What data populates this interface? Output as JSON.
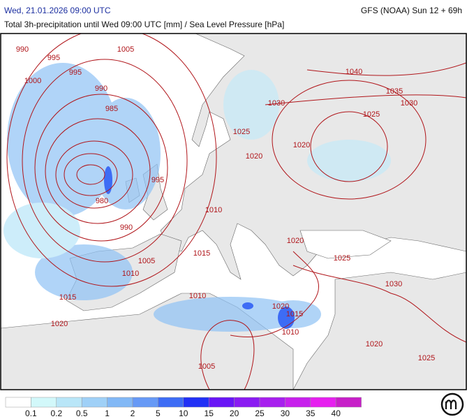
{
  "header": {
    "left": "Wed, 21.01.2026 09:00 UTC",
    "right": "GFS (NOAA) Sun 12 + 69h",
    "subtitle": "Total 3h-precipitation until Wed 09:00 UTC [mm] / Sea Level Pressure [hPa]"
  },
  "isobars": [
    "990",
    "1005",
    "995",
    "995",
    "1000",
    "990",
    "985",
    "980",
    "995",
    "990",
    "1010",
    "1015",
    "1005",
    "1010",
    "1015",
    "1010",
    "1020",
    "1040",
    "1035",
    "1030",
    "1030",
    "1025",
    "1025",
    "1020",
    "1020",
    "1020",
    "1025",
    "1030",
    "1020",
    "1015",
    "1010",
    "1020",
    "1025",
    "1005"
  ],
  "legend": {
    "labels": [
      "0.1",
      "0.2",
      "0.5",
      "1",
      "2",
      "5",
      "10",
      "15",
      "20",
      "25",
      "30",
      "35",
      "40"
    ],
    "colors": [
      "#ffffff",
      "#d2f8fa",
      "#b9e6f8",
      "#9fd0f7",
      "#82b8f6",
      "#6699f6",
      "#3d6cf5",
      "#2130f6",
      "#6815f6",
      "#8a1bf2",
      "#a71fee",
      "#c720ec",
      "#e620ef",
      "#c71fc8"
    ]
  }
}
